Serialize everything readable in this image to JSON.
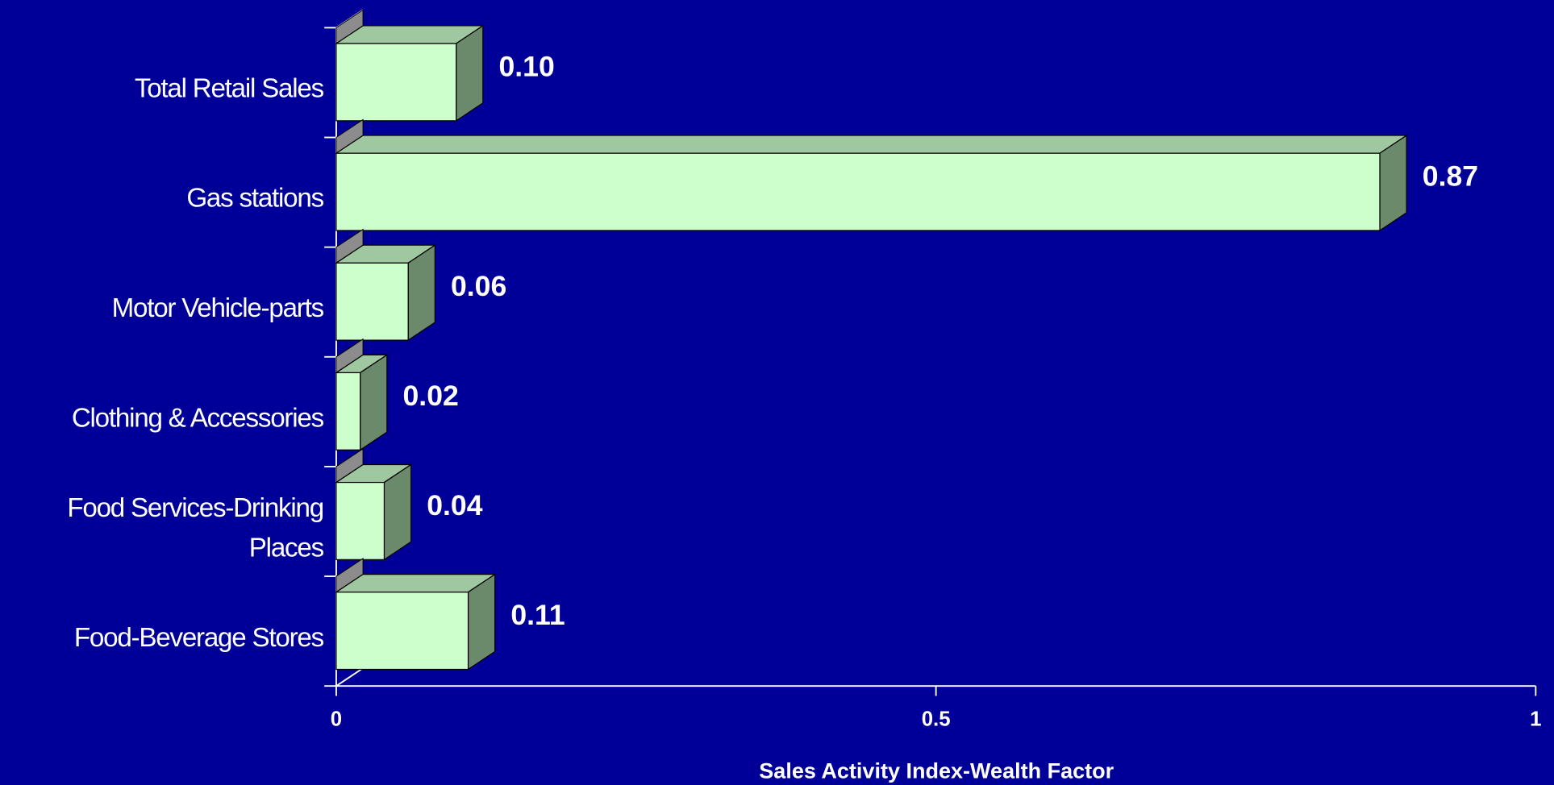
{
  "chart_data": {
    "type": "bar",
    "orientation": "horizontal",
    "categories": [
      "Total Retail Sales",
      "Gas stations",
      "Motor Vehicle-parts",
      "Clothing & Accessories",
      "Food Services-Drinking Places",
      "Food-Beverage Stores"
    ],
    "values": [
      0.1,
      0.87,
      0.06,
      0.02,
      0.04,
      0.11
    ],
    "value_labels": [
      "0.10",
      "0.87",
      "0.06",
      "0.02",
      "0.04",
      "0.11"
    ],
    "color": "#ccffcc",
    "xlabel": "Sales Activity Index-Wealth Factor",
    "xlim": [
      0,
      1
    ],
    "xticks": [
      0,
      0.5,
      1
    ]
  }
}
